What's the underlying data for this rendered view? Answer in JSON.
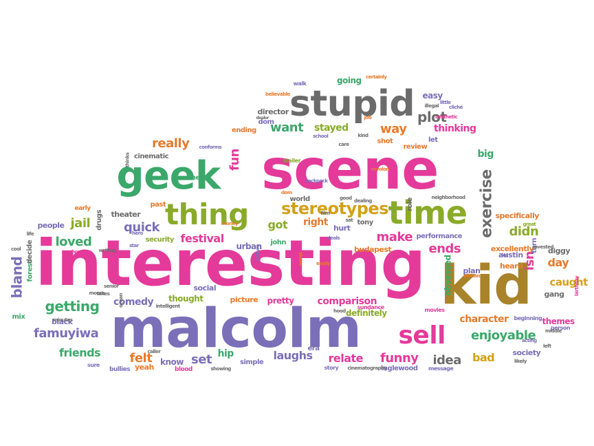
{
  "colors": {
    "pink": "#e43a9a",
    "purple": "#7a6fb8",
    "green": "#3aa86a",
    "olive": "#8aaa2a",
    "orange": "#e87a2a",
    "gold": "#d4a017",
    "gray": "#6b6b6b",
    "brown": "#a8832a"
  },
  "words": [
    "interesting",
    "malcolm",
    "scene",
    "kid",
    "geek",
    "stupid",
    "time",
    "thing",
    "sell",
    "stereotypes",
    "exercise",
    "fun",
    "really",
    "plot",
    "want",
    "way",
    "stayed",
    "ends",
    "didn",
    "isn",
    "day",
    "caught",
    "quick",
    "jail",
    "loved",
    "getting",
    "famuyiwa",
    "bland",
    "friends",
    "felt",
    "set",
    "hip",
    "laughs",
    "relate",
    "funny",
    "idea",
    "bad",
    "enjoyable",
    "character",
    "comparison",
    "definitely",
    "make",
    "festival",
    "got",
    "right",
    "comedy",
    "thought",
    "picture",
    "pretty",
    "going",
    "easy",
    "thinking",
    "big",
    "cinematic",
    "theater",
    "people",
    "director",
    "dom",
    "ending",
    "shot",
    "review",
    "let",
    "obsessed",
    "plan",
    "austin",
    "heard",
    "excellently",
    "performance",
    "budapest",
    "specifically",
    "themes",
    "society",
    "gang",
    "diggy",
    "hurt",
    "tony",
    "urban",
    "john",
    "security",
    "social",
    "online",
    "past",
    "era",
    "inglewood",
    "yeah",
    "know",
    "simple",
    "black",
    "mix",
    "forest",
    "decide",
    "drugs",
    "early",
    "role",
    "turn",
    "world",
    "walk",
    "trailer",
    "school",
    "kind",
    "care",
    "job",
    "story",
    "blood",
    "bullies",
    "movies",
    "message",
    "beginning",
    "person",
    "sundance",
    "cinematography",
    "showing",
    "intelligent",
    "writing",
    "minutes",
    "sure",
    "caller",
    "moore",
    "money",
    "dealing",
    "good",
    "neighborhood",
    "backpack",
    "revolori",
    "conforms",
    "certainly",
    "believable",
    "illegal",
    "little",
    "aesthetic",
    "cliché",
    "dealer",
    "invested",
    "great",
    "middle",
    "birthday",
    "acting",
    "left",
    "likely",
    "african",
    "lot",
    "worst",
    "easily",
    "culture",
    "star",
    "hope",
    "cool",
    "life",
    "senior",
    "takes",
    "hero",
    "ocean",
    "dom",
    "deals",
    "hood",
    "sat",
    "film",
    "thinks"
  ]
}
